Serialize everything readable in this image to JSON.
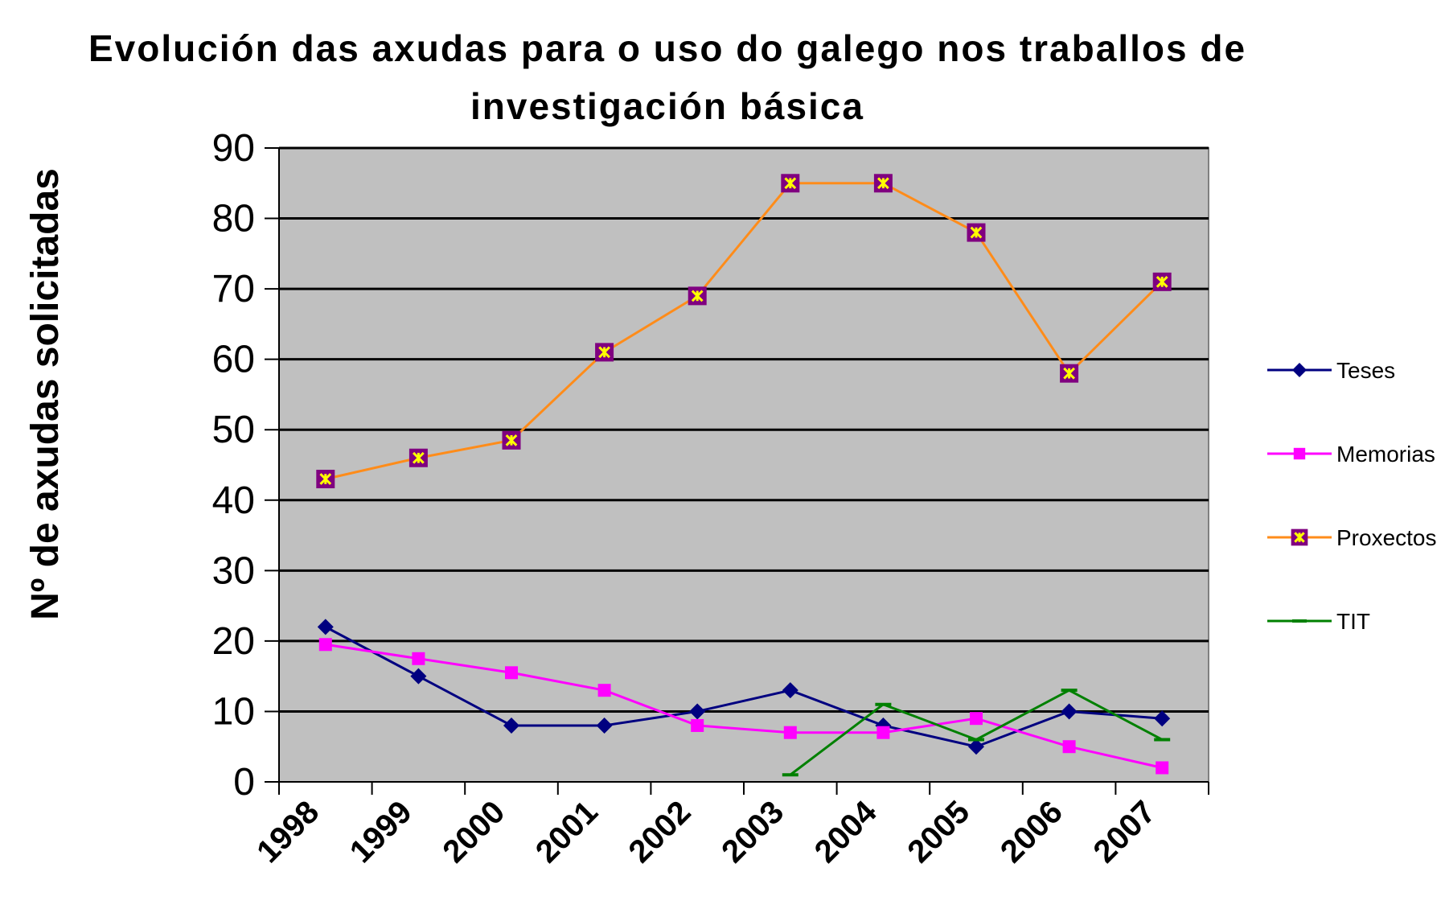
{
  "chart_data": {
    "type": "line",
    "title_line1": "Evolución das axudas para o uso do galego nos traballos de",
    "title_line2": "investigación básica",
    "xlabel": "",
    "ylabel": "Nº de axudas solicitadas",
    "categories": [
      "1998",
      "1999",
      "2000",
      "2001",
      "2002",
      "2003",
      "2004",
      "2005",
      "2006",
      "2007"
    ],
    "ylim": [
      0,
      90
    ],
    "yticks": [
      "0",
      "10",
      "20",
      "30",
      "40",
      "50",
      "60",
      "70",
      "80",
      "90"
    ],
    "grid": true,
    "legend_position": "right",
    "plot_background": "#c0c0c0",
    "series": [
      {
        "name": "Teses",
        "color": "#000080",
        "marker": "diamond",
        "values": [
          22,
          15,
          8,
          8,
          10,
          13,
          8,
          5,
          10,
          9
        ]
      },
      {
        "name": "Memorias",
        "color": "#ff00ff",
        "marker": "square",
        "values": [
          19.5,
          17.5,
          15.5,
          13,
          8,
          7,
          7,
          9,
          5,
          2
        ]
      },
      {
        "name": "Proxectos",
        "color": "#ff8c1a",
        "marker": "square-star",
        "marker_fill": "#800080",
        "marker_inner": "#ffff00",
        "values": [
          43,
          46,
          48.5,
          61,
          69,
          85,
          85,
          78,
          58,
          71
        ]
      },
      {
        "name": "TIT",
        "color": "#008000",
        "marker": "dash",
        "values": [
          null,
          null,
          null,
          null,
          null,
          1,
          11,
          6,
          13,
          6
        ]
      }
    ]
  }
}
